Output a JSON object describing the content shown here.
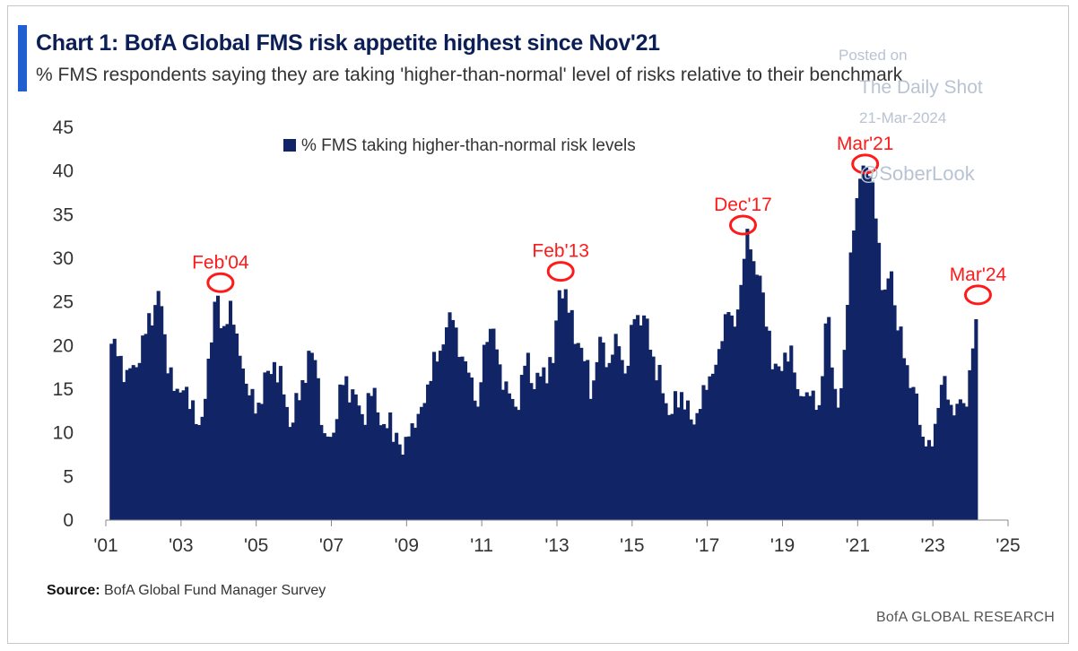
{
  "chart_data": {
    "type": "bar",
    "title": "Chart 1: BofA Global FMS risk appetite highest since Nov'21",
    "subtitle": "% FMS respondents saying they are taking 'higher-than-normal' level of risks relative to their benchmark",
    "legend": "% FMS taking higher-than-normal risk levels",
    "legend_position": "top-center",
    "ylim": [
      0,
      45
    ],
    "yticks": [
      "0",
      "5",
      "10",
      "15",
      "20",
      "25",
      "30",
      "35",
      "40",
      "45"
    ],
    "xticks": [
      {
        "label": "'01",
        "x": 2001
      },
      {
        "label": "'03",
        "x": 2003
      },
      {
        "label": "'05",
        "x": 2005
      },
      {
        "label": "'07",
        "x": 2007
      },
      {
        "label": "'09",
        "x": 2009
      },
      {
        "label": "'11",
        "x": 2011
      },
      {
        "label": "'13",
        "x": 2013
      },
      {
        "label": "'15",
        "x": 2015
      },
      {
        "label": "'17",
        "x": 2017
      },
      {
        "label": "'19",
        "x": 2019
      },
      {
        "label": "'21",
        "x": 2021
      },
      {
        "label": "'23",
        "x": 2023
      },
      {
        "label": "'25",
        "x": 2025
      }
    ],
    "xlim": [
      2001,
      2025
    ],
    "grid": false,
    "bar_color": "#102466",
    "series_keypoints": [
      [
        2001.15,
        20.2
      ],
      [
        2001.35,
        18.5
      ],
      [
        2001.6,
        17
      ],
      [
        2001.9,
        18
      ],
      [
        2002.1,
        22
      ],
      [
        2002.3,
        24.5
      ],
      [
        2002.45,
        25.8
      ],
      [
        2002.6,
        20
      ],
      [
        2002.85,
        14
      ],
      [
        2003.1,
        15
      ],
      [
        2003.4,
        11
      ],
      [
        2003.6,
        12
      ],
      [
        2003.8,
        19.5
      ],
      [
        2003.95,
        27.2
      ],
      [
        2004.1,
        20.5
      ],
      [
        2004.3,
        25.5
      ],
      [
        2004.5,
        21
      ],
      [
        2004.8,
        14.5
      ],
      [
        2005.0,
        12
      ],
      [
        2005.3,
        17
      ],
      [
        2005.5,
        18.2
      ],
      [
        2005.7,
        15
      ],
      [
        2005.95,
        10.5
      ],
      [
        2006.2,
        15.5
      ],
      [
        2006.45,
        19.5
      ],
      [
        2006.6,
        18
      ],
      [
        2006.8,
        10
      ],
      [
        2007.0,
        9.5
      ],
      [
        2007.3,
        15.5
      ],
      [
        2007.55,
        15.2
      ],
      [
        2007.8,
        12
      ],
      [
        2008.1,
        14.5
      ],
      [
        2008.4,
        11
      ],
      [
        2008.7,
        10.5
      ],
      [
        2008.9,
        7.5
      ],
      [
        2009.1,
        10
      ],
      [
        2009.35,
        12.5
      ],
      [
        2009.6,
        16
      ],
      [
        2009.85,
        18.5
      ],
      [
        2010.05,
        22
      ],
      [
        2010.25,
        23
      ],
      [
        2010.45,
        19
      ],
      [
        2010.7,
        17
      ],
      [
        2010.9,
        13
      ],
      [
        2011.1,
        21.5
      ],
      [
        2011.35,
        22
      ],
      [
        2011.55,
        15
      ],
      [
        2011.8,
        14
      ],
      [
        2012.0,
        12.5
      ],
      [
        2012.2,
        20
      ],
      [
        2012.4,
        15
      ],
      [
        2012.65,
        17.5
      ],
      [
        2012.9,
        18
      ],
      [
        2013.1,
        28
      ],
      [
        2013.3,
        24
      ],
      [
        2013.55,
        20.5
      ],
      [
        2013.75,
        18
      ],
      [
        2013.95,
        15
      ],
      [
        2014.15,
        21
      ],
      [
        2014.4,
        18
      ],
      [
        2014.6,
        22
      ],
      [
        2014.85,
        16
      ],
      [
        2015.05,
        23
      ],
      [
        2015.35,
        23.5
      ],
      [
        2015.6,
        18
      ],
      [
        2015.85,
        14
      ],
      [
        2016.05,
        12
      ],
      [
        2016.35,
        15
      ],
      [
        2016.6,
        11
      ],
      [
        2016.85,
        13
      ],
      [
        2017.1,
        17
      ],
      [
        2017.35,
        20
      ],
      [
        2017.55,
        24
      ],
      [
        2017.75,
        22
      ],
      [
        2017.95,
        28
      ],
      [
        2018.05,
        33.8
      ],
      [
        2018.2,
        30
      ],
      [
        2018.4,
        28
      ],
      [
        2018.6,
        21
      ],
      [
        2018.8,
        18
      ],
      [
        2019.0,
        17
      ],
      [
        2019.2,
        21
      ],
      [
        2019.4,
        15
      ],
      [
        2019.6,
        14
      ],
      [
        2019.8,
        15
      ],
      [
        2020.0,
        13
      ],
      [
        2020.2,
        25
      ],
      [
        2020.45,
        12
      ],
      [
        2020.6,
        16
      ],
      [
        2020.8,
        30
      ],
      [
        2020.95,
        36
      ],
      [
        2021.1,
        40
      ],
      [
        2021.2,
        40.8
      ],
      [
        2021.35,
        39
      ],
      [
        2021.5,
        34
      ],
      [
        2021.7,
        26
      ],
      [
        2021.9,
        28.5
      ],
      [
        2022.05,
        22
      ],
      [
        2022.3,
        18
      ],
      [
        2022.5,
        15
      ],
      [
        2022.7,
        10
      ],
      [
        2022.85,
        8
      ],
      [
        2023.0,
        8.5
      ],
      [
        2023.25,
        16
      ],
      [
        2023.5,
        13
      ],
      [
        2023.7,
        14
      ],
      [
        2023.9,
        13
      ],
      [
        2024.0,
        18
      ],
      [
        2024.1,
        20.5
      ],
      [
        2024.2,
        26
      ]
    ],
    "annotations": [
      {
        "label": "Feb'04",
        "x": 2004.05,
        "y": 27.2
      },
      {
        "label": "Feb'13",
        "x": 2013.1,
        "y": 28.5
      },
      {
        "label": "Dec'17",
        "x": 2017.95,
        "y": 33.8
      },
      {
        "label": "Mar'21",
        "x": 2021.2,
        "y": 40.8
      },
      {
        "label": "Mar'24",
        "x": 2024.2,
        "y": 25.8
      }
    ]
  },
  "watermark": {
    "line1": "Posted on",
    "line2": "The Daily Shot",
    "line3": "21-Mar-2024",
    "line4": "@SoberLook"
  },
  "source": {
    "label": "Source:",
    "text": " BofA Global Fund Manager Survey"
  },
  "brand": "BofA GLOBAL RESEARCH"
}
